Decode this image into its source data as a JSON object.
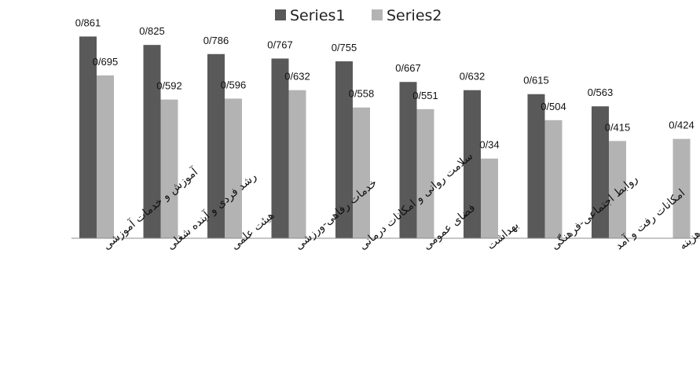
{
  "chart_data": {
    "type": "bar",
    "categories": [
      "آموزش و خدمات آموزشی",
      "رشد فردی و آینده شغلی",
      "هیئت علمی",
      "خدمات رفاهی-ورزشی",
      "سلامت روانی و امکانات درمانی",
      "فضای عمومی",
      "بهداشت",
      "روابط اجتماعی-فرهنگی",
      "امکانات رفت و آمد",
      "هزینه"
    ],
    "series": [
      {
        "name": "Series1",
        "color": "#595959",
        "values": [
          0.861,
          0.825,
          0.786,
          0.767,
          0.755,
          0.667,
          0.632,
          0.615,
          0.563,
          null
        ],
        "labels": [
          "0/861",
          "0/825",
          "0/786",
          "0/767",
          "0/755",
          "0/667",
          "0/632",
          "0/615",
          "0/563",
          ""
        ]
      },
      {
        "name": "Series2",
        "color": "#b3b3b3",
        "values": [
          0.695,
          0.592,
          0.596,
          0.632,
          0.558,
          0.551,
          0.34,
          0.504,
          0.415,
          0.424
        ],
        "labels": [
          "0/695",
          "0/592",
          "0/596",
          "0/632",
          "0/558",
          "0/551",
          "0/34",
          "0/504",
          "0/415",
          "0/424"
        ]
      }
    ],
    "ylim": [
      0,
      1
    ],
    "grid": false,
    "legend": "top-center"
  }
}
